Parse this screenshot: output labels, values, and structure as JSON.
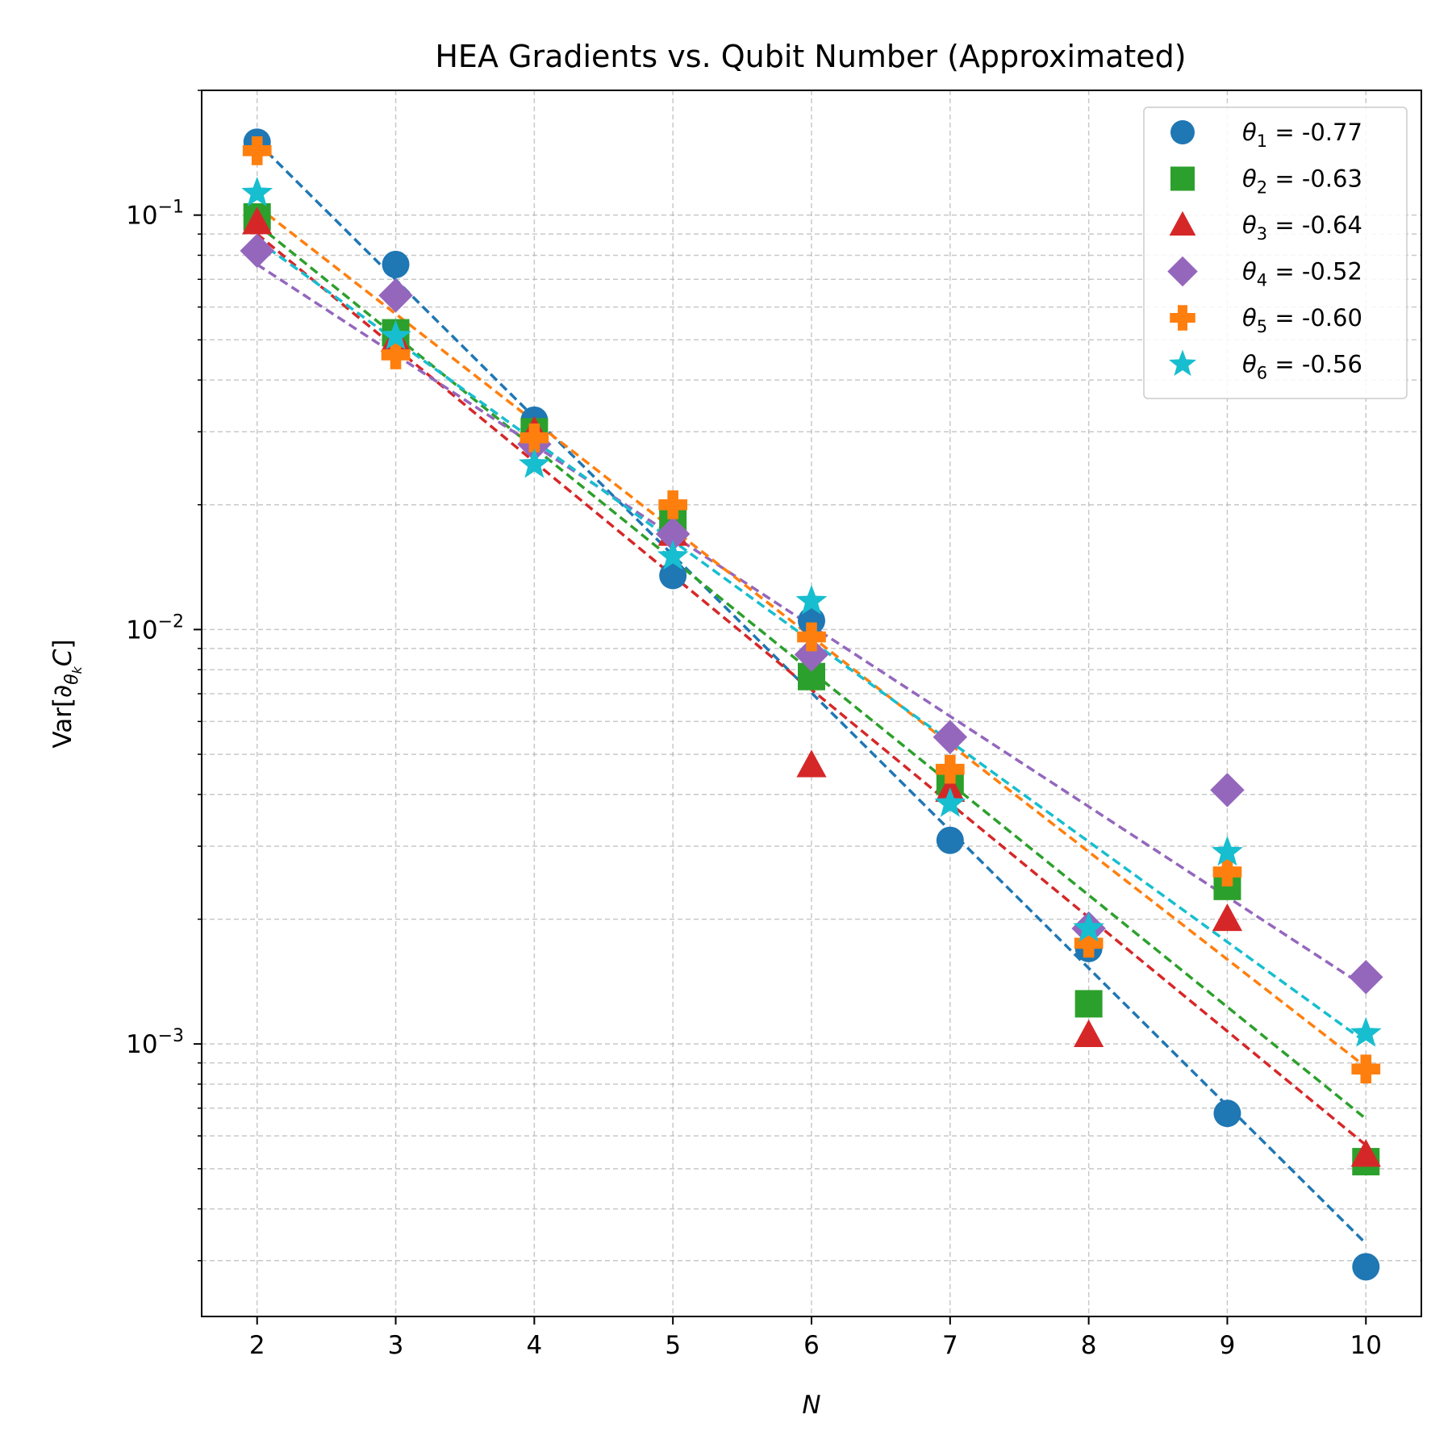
{
  "chart_data": {
    "type": "scatter",
    "title": "HEA Gradients vs. Qubit Number (Approximated)",
    "xlabel": "N",
    "ylabel": "Var[∂θkC]",
    "x": [
      2,
      3,
      4,
      5,
      6,
      7,
      8,
      9,
      10
    ],
    "xlim": [
      1.6,
      10.4
    ],
    "ylim": [
      0.00022,
      0.2
    ],
    "yscale": "log",
    "y_ticks": [
      {
        "value": 0.1,
        "base": "10",
        "exp": "−1"
      },
      {
        "value": 0.01,
        "base": "10",
        "exp": "−2"
      },
      {
        "value": 0.001,
        "base": "10",
        "exp": "−3"
      }
    ],
    "grid": true,
    "legend_position": "top-right",
    "fit_lines": "dashed",
    "series": [
      {
        "label": "θ1 = -0.77",
        "sym": "θ",
        "sub": "1",
        "value_text": " = -0.77",
        "color": "#1f77b4",
        "marker": "circle",
        "values": [
          0.15,
          0.076,
          0.032,
          0.0135,
          0.0105,
          0.0031,
          0.0017,
          0.00068,
          0.00029
        ],
        "fit": [
          0.15,
          0.00033
        ]
      },
      {
        "label": "θ2 = -0.63",
        "sym": "θ",
        "sub": "2",
        "value_text": " = -0.63",
        "color": "#2ca02c",
        "marker": "square",
        "values": [
          0.099,
          0.052,
          0.03,
          0.018,
          0.0077,
          0.0043,
          0.00125,
          0.0024,
          0.00052
        ],
        "fit": [
          0.095,
          0.00066
        ]
      },
      {
        "label": "θ3 = -0.64",
        "sym": "θ",
        "sub": "3",
        "value_text": " = -0.64",
        "color": "#d62728",
        "marker": "triangle",
        "values": [
          0.096,
          0.05,
          0.03,
          0.017,
          0.0047,
          0.0041,
          0.00105,
          0.002,
          0.00054
        ],
        "fit": [
          0.09,
          0.00057
        ]
      },
      {
        "label": "θ4 = -0.52",
        "sym": "θ",
        "sub": "4",
        "value_text": " = -0.52",
        "color": "#9467bd",
        "marker": "diamond",
        "values": [
          0.082,
          0.064,
          0.028,
          0.017,
          0.0087,
          0.0055,
          0.0019,
          0.0041,
          0.00145
        ],
        "fit": [
          0.076,
          0.00137
        ]
      },
      {
        "label": "θ5 = -0.60",
        "sym": "θ",
        "sub": "5",
        "value_text": " = -0.60",
        "color": "#ff7f0e",
        "marker": "plus",
        "values": [
          0.143,
          0.046,
          0.029,
          0.02,
          0.0096,
          0.0046,
          0.00175,
          0.0026,
          0.00087
        ],
        "fit": [
          0.105,
          0.00088
        ]
      },
      {
        "label": "θ6 = -0.56",
        "sym": "θ",
        "sub": "6",
        "value_text": " = -0.56",
        "color": "#17becf",
        "marker": "star",
        "values": [
          0.113,
          0.051,
          0.025,
          0.015,
          0.0117,
          0.0038,
          0.0019,
          0.0029,
          0.00106
        ],
        "fit": [
          0.087,
          0.00101
        ]
      }
    ]
  }
}
